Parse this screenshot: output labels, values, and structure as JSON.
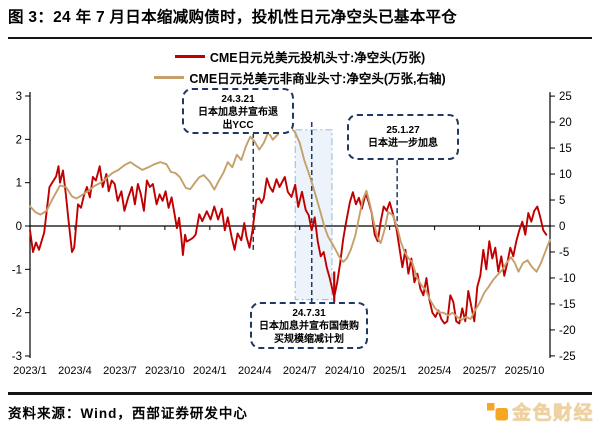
{
  "header": {
    "title": "图 3：24 年 7 月日本缩减购债时，投机性日元净空头已基本平仓"
  },
  "legend": {
    "items": [
      {
        "label": "CME日元兑美元投机头寸:净空头(万张)"
      },
      {
        "label": "CME日元兑美元非商业头寸:净空头(万张,右轴)"
      }
    ]
  },
  "colors": {
    "spec_line": "#C00000",
    "noncomm_line": "#C5A06B",
    "navy": "#1F3864",
    "axis": "#000000",
    "shade_fill": "#DCE9F6",
    "shade_border": "#9DC3E6",
    "brand_orange": "#F5A623",
    "brand_gold": "#EDD1A0"
  },
  "annotations": [
    {
      "id": "ycc-exit",
      "lines": [
        "24.3.21",
        "日本加息并宣布退",
        "出YCC"
      ]
    },
    {
      "id": "further-hike",
      "lines": [
        "25.1.27",
        "日本进一步加息"
      ]
    },
    {
      "id": "bond-taper",
      "lines": [
        "24.7.31",
        "日本加息并宣布国债购",
        "买规模缩减计划"
      ]
    }
  ],
  "footer": {
    "source": "资料来源：Wind，西部证券研发中心",
    "brand": "金色财经"
  },
  "chart_data": {
    "type": "line",
    "title": "24 年 7 月日本缩减购债时，投机性日元净空头已基本平仓",
    "legend_position": "top",
    "grid": false,
    "x_unit": "months since 2023/1 (weekly data)",
    "x_month_span": 34.7,
    "x_labels": [
      "2023/1",
      "2023/4",
      "2023/7",
      "2023/10",
      "2024/1",
      "2024/4",
      "2024/7",
      "2024/10",
      "2025/1",
      "2025/4",
      "2025/7",
      "2025/10"
    ],
    "left_axis": {
      "min": -3,
      "max": 3,
      "ticks": [
        3,
        2,
        1,
        0,
        -1,
        -2,
        -3
      ]
    },
    "right_axis": {
      "min": -25,
      "max": 25,
      "ticks": [
        25,
        20,
        15,
        10,
        5,
        0,
        -5,
        -10,
        -15,
        -20,
        -25
      ]
    },
    "series": [
      {
        "name": "CME日元兑美元投机头寸:净空头(万张)",
        "data_name": "series-speculative-net-short",
        "axis": "left",
        "color": "#C00000",
        "points": [
          [
            0,
            -0.1
          ],
          [
            0.2,
            -0.6
          ],
          [
            0.4,
            -0.38
          ],
          [
            0.6,
            -0.55
          ],
          [
            0.95,
            -0.15
          ],
          [
            1.3,
            0.9
          ],
          [
            1.75,
            1.15
          ],
          [
            1.9,
            1.38
          ],
          [
            2.0,
            1.0
          ],
          [
            2.2,
            1.28
          ],
          [
            2.4,
            0.7
          ],
          [
            2.55,
            0.2
          ],
          [
            2.8,
            -0.6
          ],
          [
            2.95,
            -0.5
          ],
          [
            3.2,
            0.5
          ],
          [
            3.4,
            0.42
          ],
          [
            3.6,
            0.7
          ],
          [
            3.8,
            0.9
          ],
          [
            4.0,
            0.66
          ],
          [
            4.2,
            1.13
          ],
          [
            4.4,
            1.05
          ],
          [
            4.65,
            1.38
          ],
          [
            4.85,
            0.9
          ],
          [
            5.1,
            1.2
          ],
          [
            5.25,
            0.8
          ],
          [
            5.45,
            1.05
          ],
          [
            5.65,
            0.97
          ],
          [
            5.85,
            0.58
          ],
          [
            6.1,
            0.8
          ],
          [
            6.3,
            0.35
          ],
          [
            6.55,
            0.66
          ],
          [
            6.8,
            0.9
          ],
          [
            7.0,
            0.5
          ],
          [
            7.2,
            0.97
          ],
          [
            7.4,
            0.73
          ],
          [
            7.6,
            0.35
          ],
          [
            7.8,
            1.05
          ],
          [
            8.0,
            0.9
          ],
          [
            8.2,
            0.97
          ],
          [
            8.45,
            0.5
          ],
          [
            8.65,
            0.73
          ],
          [
            8.85,
            0.58
          ],
          [
            9.05,
            0.8
          ],
          [
            9.25,
            0.42
          ],
          [
            9.45,
            0.66
          ],
          [
            9.65,
            0.27
          ],
          [
            9.8,
            -0.05
          ],
          [
            9.95,
            0.19
          ],
          [
            10.1,
            -0.28
          ],
          [
            10.2,
            -0.67
          ],
          [
            10.35,
            -0.2
          ],
          [
            10.45,
            -0.36
          ],
          [
            10.65,
            -0.32
          ],
          [
            10.85,
            -0.28
          ],
          [
            11.05,
            -0.2
          ],
          [
            11.3,
            0.27
          ],
          [
            11.5,
            0.11
          ],
          [
            11.8,
            0.34
          ],
          [
            12.05,
            0.15
          ],
          [
            12.3,
            0.45
          ],
          [
            12.55,
            0.15
          ],
          [
            12.8,
            0.4
          ],
          [
            13.0,
            -0.1
          ],
          [
            13.2,
            0.2
          ],
          [
            13.45,
            -0.25
          ],
          [
            13.65,
            -0.55
          ],
          [
            13.85,
            -0.17
          ],
          [
            14.1,
            -0.33
          ],
          [
            14.3,
            0.07
          ],
          [
            14.45,
            -0.25
          ],
          [
            14.65,
            -0.5
          ],
          [
            14.85,
            -0.1
          ],
          [
            15.1,
            0.6
          ],
          [
            15.3,
            0.64
          ],
          [
            15.45,
            0.53
          ],
          [
            15.6,
            0.64
          ],
          [
            15.8,
            1.1
          ],
          [
            16.0,
            0.9
          ],
          [
            16.2,
            0.79
          ],
          [
            16.45,
            1.08
          ],
          [
            16.65,
            0.9
          ],
          [
            17.0,
            1.13
          ],
          [
            17.2,
            0.79
          ],
          [
            17.45,
            0.67
          ],
          [
            17.7,
            0.95
          ],
          [
            17.9,
            0.44
          ],
          [
            18.15,
            0.79
          ],
          [
            18.4,
            0.37
          ],
          [
            18.6,
            0.25
          ],
          [
            18.8,
            -0.1
          ],
          [
            19.0,
            0.2
          ],
          [
            19.2,
            -0.35
          ],
          [
            19.4,
            -0.7
          ],
          [
            19.6,
            -0.6
          ],
          [
            19.8,
            -0.95
          ],
          [
            20.0,
            -1.2
          ],
          [
            20.3,
            -1.64
          ],
          [
            20.5,
            -1.3
          ],
          [
            20.7,
            -0.85
          ],
          [
            20.9,
            -0.3
          ],
          [
            21.1,
            0.1
          ],
          [
            21.35,
            0.55
          ],
          [
            21.55,
            0.78
          ],
          [
            21.75,
            0.5
          ],
          [
            21.95,
            0.65
          ],
          [
            22.15,
            0.4
          ],
          [
            22.4,
            0.75
          ],
          [
            22.6,
            0.55
          ],
          [
            22.8,
            0.3
          ],
          [
            23.0,
            -0.2
          ],
          [
            23.2,
            -0.35
          ],
          [
            23.4,
            0.1
          ],
          [
            23.6,
            0.45
          ],
          [
            23.8,
            0.35
          ],
          [
            24.0,
            0.55
          ],
          [
            24.2,
            0.3
          ],
          [
            24.45,
            -0.05
          ],
          [
            24.65,
            -0.5
          ],
          [
            24.85,
            -0.95
          ],
          [
            25.05,
            -0.55
          ],
          [
            25.25,
            -1.1
          ],
          [
            25.45,
            -0.75
          ],
          [
            25.65,
            -1.3
          ],
          [
            25.85,
            -1.1
          ],
          [
            26.05,
            -1.45
          ],
          [
            26.25,
            -1.6
          ],
          [
            26.45,
            -1.2
          ],
          [
            26.65,
            -1.7
          ],
          [
            26.85,
            -2.0
          ],
          [
            27.05,
            -2.1
          ],
          [
            27.25,
            -1.95
          ],
          [
            27.45,
            -2.15
          ],
          [
            27.65,
            -2.25
          ],
          [
            27.85,
            -2.2
          ],
          [
            28.05,
            -1.6
          ],
          [
            28.25,
            -1.75
          ],
          [
            28.45,
            -2.2
          ],
          [
            28.65,
            -2.25
          ],
          [
            28.85,
            -1.9
          ],
          [
            29.05,
            -2.2
          ],
          [
            29.25,
            -1.5
          ],
          [
            29.45,
            -1.85
          ],
          [
            29.65,
            -2.2
          ],
          [
            29.85,
            -1.4
          ],
          [
            30.05,
            -1.15
          ],
          [
            30.25,
            -0.55
          ],
          [
            30.45,
            -1.0
          ],
          [
            30.65,
            -0.35
          ],
          [
            30.85,
            -0.75
          ],
          [
            31.05,
            -0.5
          ],
          [
            31.25,
            -1.05
          ],
          [
            31.45,
            -0.7
          ],
          [
            31.65,
            -1.15
          ],
          [
            31.85,
            -0.85
          ],
          [
            32.05,
            -0.5
          ],
          [
            32.25,
            -0.7
          ],
          [
            32.45,
            -0.35
          ],
          [
            32.65,
            -0.1
          ],
          [
            32.85,
            0.1
          ],
          [
            33.05,
            -0.2
          ],
          [
            33.25,
            0.3
          ],
          [
            33.45,
            0.1
          ],
          [
            33.65,
            0.35
          ],
          [
            33.85,
            0.45
          ],
          [
            34.05,
            0.2
          ],
          [
            34.25,
            -0.1
          ],
          [
            34.45,
            -0.2
          ]
        ]
      },
      {
        "name": "CME日元兑美元非商业头寸:净空头(万张,右轴)",
        "data_name": "series-noncommercial-net-short",
        "axis": "right",
        "color": "#C5A06B",
        "points": [
          [
            0,
            3.8
          ],
          [
            0.35,
            2.7
          ],
          [
            0.7,
            2.2
          ],
          [
            1.1,
            2.9
          ],
          [
            1.5,
            5.2
          ],
          [
            2.0,
            7.8
          ],
          [
            2.4,
            7.5
          ],
          [
            2.8,
            5.7
          ],
          [
            3.1,
            5.3
          ],
          [
            3.5,
            6.0
          ],
          [
            3.9,
            6.8
          ],
          [
            4.3,
            7.7
          ],
          [
            4.7,
            8.3
          ],
          [
            5.1,
            9.2
          ],
          [
            5.5,
            10.2
          ],
          [
            5.9,
            10.8
          ],
          [
            6.3,
            11.7
          ],
          [
            6.7,
            12.3
          ],
          [
            7.1,
            11.5
          ],
          [
            7.5,
            10.8
          ],
          [
            7.9,
            11.3
          ],
          [
            8.3,
            11.9
          ],
          [
            8.7,
            12.3
          ],
          [
            9.1,
            11.9
          ],
          [
            9.4,
            10.4
          ],
          [
            9.7,
            10.2
          ],
          [
            10.0,
            9.4
          ],
          [
            10.4,
            7.3
          ],
          [
            10.7,
            7.1
          ],
          [
            11.0,
            8.3
          ],
          [
            11.3,
            9.4
          ],
          [
            11.6,
            9.8
          ],
          [
            12.0,
            8.5
          ],
          [
            12.3,
            7.0
          ],
          [
            12.6,
            8.7
          ],
          [
            12.9,
            10.2
          ],
          [
            13.2,
            12.3
          ],
          [
            13.5,
            11.3
          ],
          [
            13.8,
            13.7
          ],
          [
            14.1,
            12.7
          ],
          [
            14.4,
            15.3
          ],
          [
            14.7,
            17.2
          ],
          [
            15.0,
            16.2
          ],
          [
            15.3,
            14.7
          ],
          [
            15.6,
            16.0
          ],
          [
            15.9,
            18.1
          ],
          [
            16.2,
            16.6
          ],
          [
            16.5,
            17.5
          ],
          [
            16.8,
            18.7
          ],
          [
            17.1,
            18.3
          ],
          [
            17.45,
            18.8
          ],
          [
            17.7,
            18.0
          ],
          [
            18.0,
            16.0
          ],
          [
            18.3,
            12.7
          ],
          [
            18.6,
            10.2
          ],
          [
            18.9,
            7.5
          ],
          [
            19.15,
            5.0
          ],
          [
            19.4,
            2.5
          ],
          [
            19.65,
            -0.2
          ],
          [
            19.9,
            -2.1
          ],
          [
            20.15,
            -3.3
          ],
          [
            20.4,
            -4.6
          ],
          [
            20.65,
            -6.0
          ],
          [
            20.9,
            -6.9
          ],
          [
            21.15,
            -6.2
          ],
          [
            21.4,
            -4.6
          ],
          [
            21.7,
            -1.9
          ],
          [
            21.95,
            1.5
          ],
          [
            22.2,
            5.0
          ],
          [
            22.45,
            6.8
          ],
          [
            22.7,
            4.0
          ],
          [
            22.95,
            0.6
          ],
          [
            23.2,
            -2.3
          ],
          [
            23.4,
            -3.3
          ],
          [
            23.65,
            -0.8
          ],
          [
            23.9,
            2.7
          ],
          [
            24.2,
            2.1
          ],
          [
            24.5,
            -0.2
          ],
          [
            24.75,
            -3.1
          ],
          [
            25.0,
            -5.0
          ],
          [
            25.25,
            -6.2
          ],
          [
            25.5,
            -6.9
          ],
          [
            25.8,
            -9.8
          ],
          [
            26.1,
            -11.3
          ],
          [
            26.4,
            -12.3
          ],
          [
            26.7,
            -14.2
          ],
          [
            27.0,
            -15.7
          ],
          [
            27.3,
            -16.6
          ],
          [
            27.6,
            -16.7
          ],
          [
            27.9,
            -17.2
          ],
          [
            28.2,
            -16.7
          ],
          [
            28.5,
            -17.5
          ],
          [
            28.8,
            -18.1
          ],
          [
            29.1,
            -17.5
          ],
          [
            29.4,
            -17.9
          ],
          [
            29.7,
            -16.2
          ],
          [
            30.0,
            -14.8
          ],
          [
            30.3,
            -12.9
          ],
          [
            30.6,
            -11.7
          ],
          [
            30.9,
            -10.4
          ],
          [
            31.2,
            -9.4
          ],
          [
            31.5,
            -8.5
          ],
          [
            31.8,
            -7.1
          ],
          [
            32.1,
            -6.0
          ],
          [
            32.35,
            -7.1
          ],
          [
            32.6,
            -8.8
          ],
          [
            32.9,
            -7.1
          ],
          [
            33.2,
            -6.6
          ],
          [
            33.5,
            -7.9
          ],
          [
            33.8,
            -8.8
          ],
          [
            34.1,
            -7.1
          ],
          [
            34.35,
            -5.2
          ],
          [
            34.55,
            -3.7
          ],
          [
            34.7,
            -2.7
          ]
        ]
      }
    ],
    "shaded_region": {
      "month_from": 17.7,
      "month_to": 20.15,
      "value_top": 2.22,
      "value_bottom": -1.7,
      "fill": "#DCE9F6",
      "border": "#9DC3E6"
    },
    "event_lines": [
      {
        "label_ref": "24.3.21",
        "month": 14.9,
        "from_value": 2.15,
        "to_value": -0.55
      },
      {
        "label_ref": "24.7.31",
        "month": 18.8,
        "from_value": 2.4,
        "to_value": -1.78
      },
      {
        "label_ref": "25.1.27",
        "month": 24.5,
        "from_value": 1.52,
        "to_value": -0.05
      }
    ],
    "arrow": {
      "month": 20.3,
      "from_value": -1.05,
      "tip_value": -1.95
    }
  }
}
